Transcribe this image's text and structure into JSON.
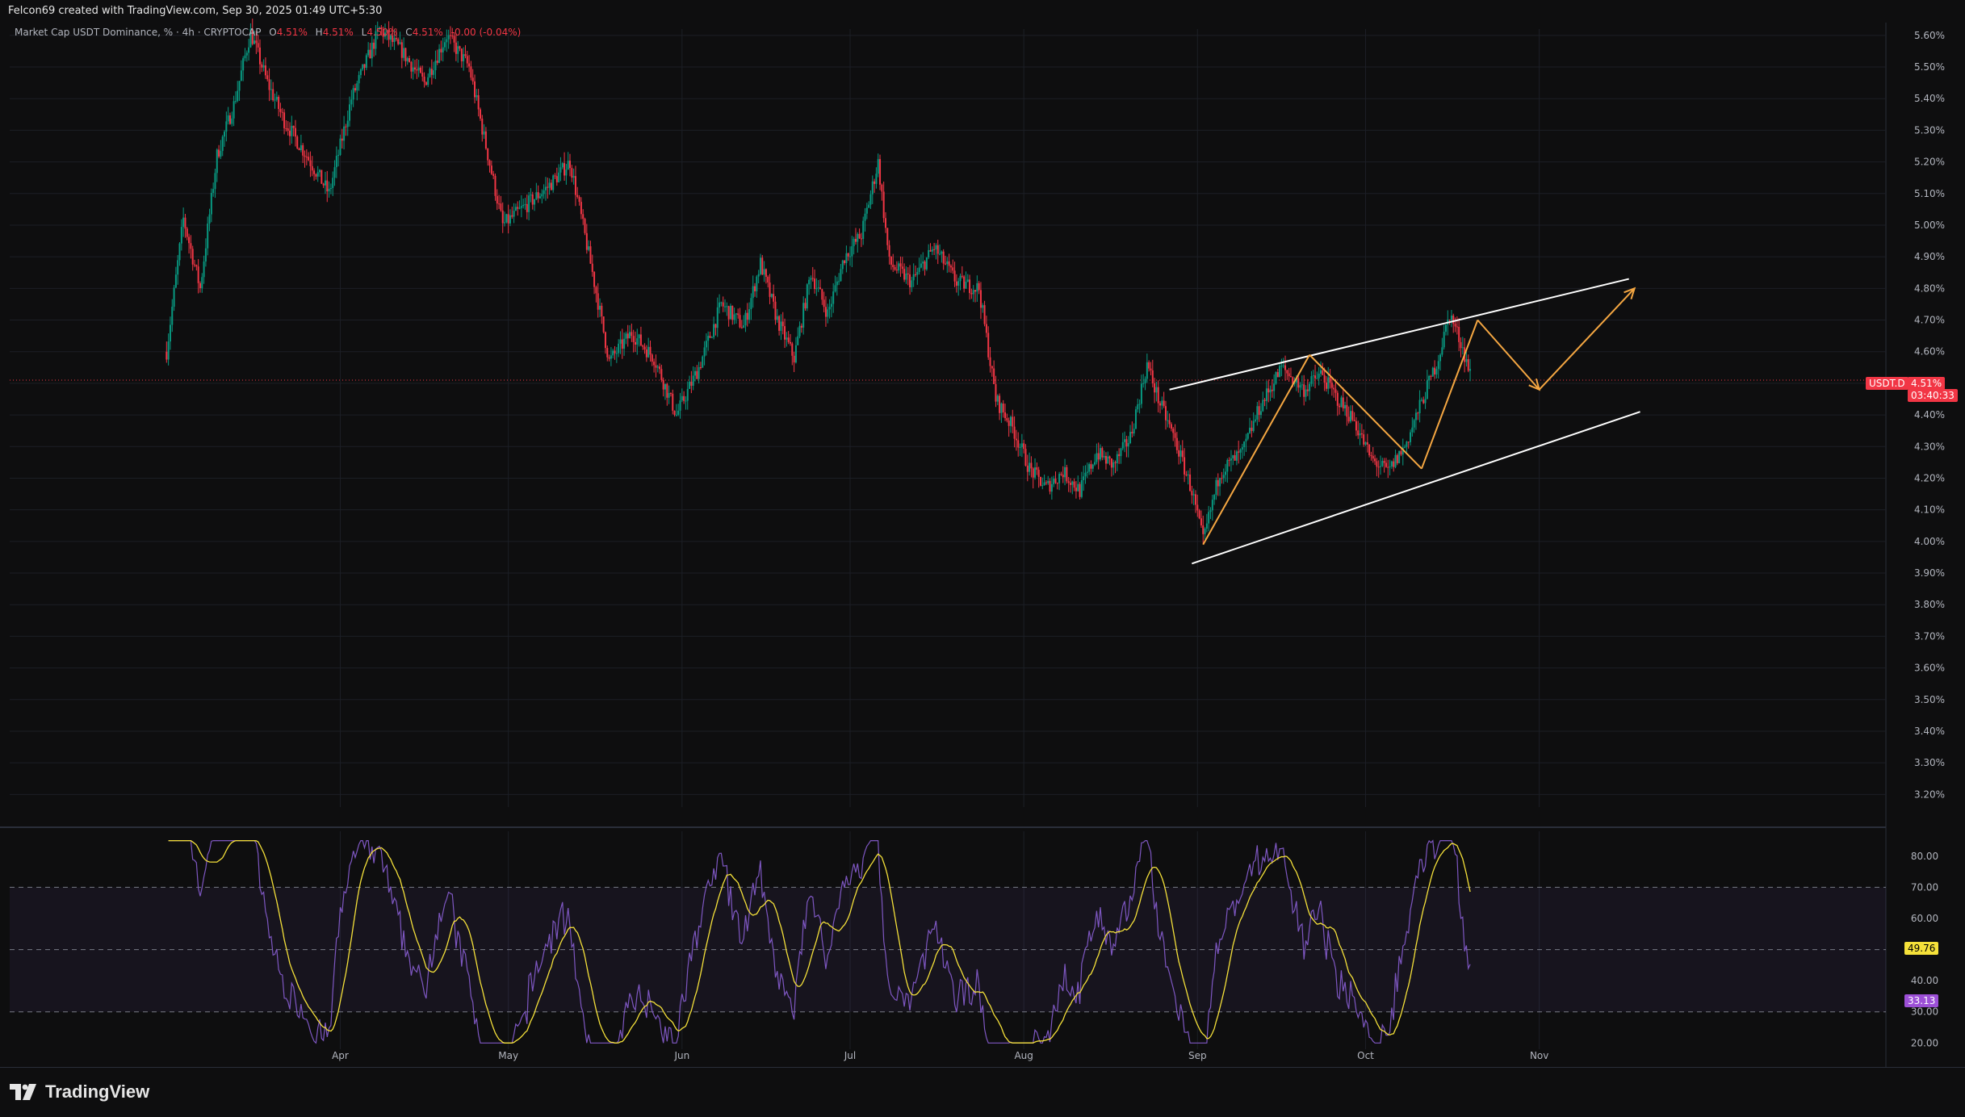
{
  "header": {
    "credit": "Felcon69 created with TradingView.com, Sep 30, 2025 01:49 UTC+5:30"
  },
  "legend": {
    "title": "Market Cap USDT Dominance, % · 4h · CRYPTOCAP",
    "open_label": "O",
    "open": "4.51%",
    "high_label": "H",
    "high": "4.51%",
    "low_label": "L",
    "low": "4.50%",
    "close_label": "C",
    "close": "4.51%",
    "change": "-0.00 (-0.04%)"
  },
  "price_tag": {
    "symbol": "USDT.D",
    "value": "4.51%",
    "countdown": "03:40:33"
  },
  "rsi_tags": {
    "ma": "49.76",
    "rsi": "33.13"
  },
  "branding": {
    "logo_text": "TradingView",
    "logo_icon": "tradingview-logo-icon"
  },
  "colors": {
    "background": "#0e0e0f",
    "up": "#089981",
    "down": "#f23645",
    "rsi_line": "#7e57c2",
    "rsi_ma": "#f5e13a",
    "projection": "#f5a742",
    "channel": "#ffffff"
  },
  "chart_data": [
    {
      "type": "candlestick",
      "interval": "4h",
      "y_axis_ticks": [
        "5.60%",
        "5.50%",
        "5.40%",
        "5.30%",
        "5.20%",
        "5.10%",
        "5.00%",
        "4.90%",
        "4.80%",
        "4.70%",
        "4.60%",
        "4.50%",
        "4.40%",
        "4.30%",
        "4.20%",
        "4.10%",
        "4.00%",
        "3.90%",
        "3.80%",
        "3.70%",
        "3.60%",
        "3.50%",
        "3.40%",
        "3.30%",
        "3.20%"
      ],
      "x_axis_ticks": [
        "Apr",
        "May",
        "Jun",
        "Jul",
        "Aug",
        "Sep",
        "Oct",
        "Nov"
      ],
      "ylim": [
        3.16,
        5.62
      ],
      "current_price": 4.51,
      "path_points": [
        {
          "d": 0,
          "v": 4.6
        },
        {
          "d": 3,
          "v": 5.02
        },
        {
          "d": 6,
          "v": 4.8
        },
        {
          "d": 9,
          "v": 5.22
        },
        {
          "d": 12,
          "v": 5.38
        },
        {
          "d": 15,
          "v": 5.61
        },
        {
          "d": 18,
          "v": 5.45
        },
        {
          "d": 21,
          "v": 5.33
        },
        {
          "d": 25,
          "v": 5.22
        },
        {
          "d": 29,
          "v": 5.1
        },
        {
          "d": 33,
          "v": 5.4
        },
        {
          "d": 38,
          "v": 5.62
        },
        {
          "d": 42,
          "v": 5.55
        },
        {
          "d": 46,
          "v": 5.45
        },
        {
          "d": 50,
          "v": 5.6
        },
        {
          "d": 54,
          "v": 5.5
        },
        {
          "d": 57,
          "v": 5.25
        },
        {
          "d": 60,
          "v": 5.0
        },
        {
          "d": 64,
          "v": 5.06
        },
        {
          "d": 68,
          "v": 5.12
        },
        {
          "d": 72,
          "v": 5.2
        },
        {
          "d": 76,
          "v": 4.85
        },
        {
          "d": 79,
          "v": 4.57
        },
        {
          "d": 83,
          "v": 4.66
        },
        {
          "d": 87,
          "v": 4.58
        },
        {
          "d": 91,
          "v": 4.4
        },
        {
          "d": 95,
          "v": 4.55
        },
        {
          "d": 99,
          "v": 4.75
        },
        {
          "d": 103,
          "v": 4.68
        },
        {
          "d": 106,
          "v": 4.88
        },
        {
          "d": 109,
          "v": 4.7
        },
        {
          "d": 112,
          "v": 4.58
        },
        {
          "d": 115,
          "v": 4.85
        },
        {
          "d": 118,
          "v": 4.72
        },
        {
          "d": 121,
          "v": 4.9
        },
        {
          "d": 124,
          "v": 4.97
        },
        {
          "d": 127,
          "v": 5.2
        },
        {
          "d": 129,
          "v": 4.88
        },
        {
          "d": 133,
          "v": 4.82
        },
        {
          "d": 137,
          "v": 4.93
        },
        {
          "d": 141,
          "v": 4.82
        },
        {
          "d": 145,
          "v": 4.8
        },
        {
          "d": 148,
          "v": 4.45
        },
        {
          "d": 151,
          "v": 4.36
        },
        {
          "d": 154,
          "v": 4.23
        },
        {
          "d": 157,
          "v": 4.17
        },
        {
          "d": 160,
          "v": 4.22
        },
        {
          "d": 163,
          "v": 4.16
        },
        {
          "d": 166,
          "v": 4.28
        },
        {
          "d": 169,
          "v": 4.24
        },
        {
          "d": 172,
          "v": 4.33
        },
        {
          "d": 175,
          "v": 4.56
        },
        {
          "d": 177,
          "v": 4.45
        },
        {
          "d": 180,
          "v": 4.32
        },
        {
          "d": 183,
          "v": 4.16
        },
        {
          "d": 185,
          "v": 4.0
        },
        {
          "d": 188,
          "v": 4.22
        },
        {
          "d": 192,
          "v": 4.28
        },
        {
          "d": 195,
          "v": 4.42
        },
        {
          "d": 199,
          "v": 4.55
        },
        {
          "d": 203,
          "v": 4.48
        },
        {
          "d": 206,
          "v": 4.53
        },
        {
          "d": 209,
          "v": 4.45
        },
        {
          "d": 212,
          "v": 4.38
        },
        {
          "d": 215,
          "v": 4.26
        },
        {
          "d": 218,
          "v": 4.22
        },
        {
          "d": 221,
          "v": 4.3
        },
        {
          "d": 224,
          "v": 4.44
        },
        {
          "d": 227,
          "v": 4.58
        },
        {
          "d": 229,
          "v": 4.72
        },
        {
          "d": 231,
          "v": 4.63
        },
        {
          "d": 233,
          "v": 4.51
        }
      ]
    },
    {
      "type": "line",
      "name": "RSI",
      "y_axis_ticks": [
        "80.00",
        "70.00",
        "60.00",
        "40.00",
        "30.00",
        "20.00"
      ],
      "ylim": [
        18,
        88
      ],
      "bands": [
        30,
        50,
        70
      ],
      "last_rsi": 33.13,
      "last_ma": 49.76
    }
  ]
}
